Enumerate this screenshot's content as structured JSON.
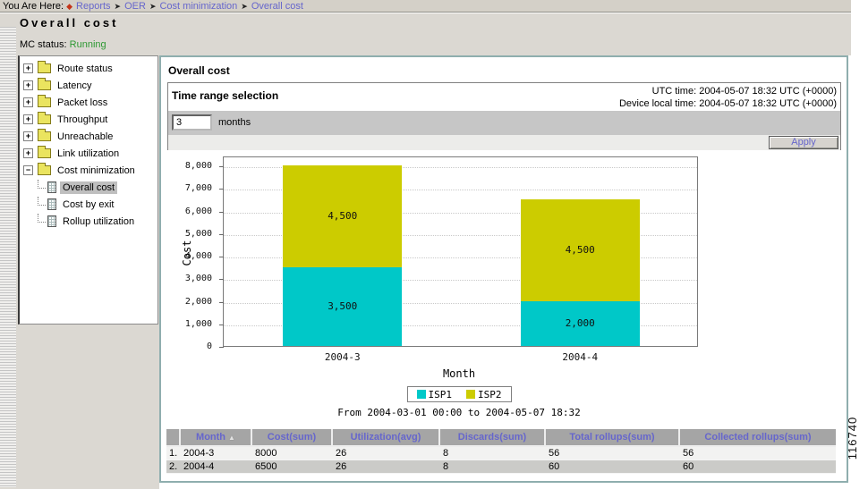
{
  "breadcrumb": {
    "prefix": "You Are Here:",
    "items": [
      "Reports",
      "OER",
      "Cost minimization",
      "Overall cost"
    ]
  },
  "page": {
    "title": "Overall cost",
    "mc_status_label": "MC status:",
    "mc_status_value": "Running",
    "figure_number": "116740"
  },
  "sidebar": {
    "items": [
      {
        "label": "Route status",
        "type": "folder",
        "state": "collapsed"
      },
      {
        "label": "Latency",
        "type": "folder",
        "state": "collapsed"
      },
      {
        "label": "Packet loss",
        "type": "folder",
        "state": "collapsed"
      },
      {
        "label": "Throughput",
        "type": "folder",
        "state": "collapsed"
      },
      {
        "label": "Unreachable",
        "type": "folder",
        "state": "collapsed"
      },
      {
        "label": "Link utilization",
        "type": "folder",
        "state": "collapsed"
      },
      {
        "label": "Cost minimization",
        "type": "folder",
        "state": "expanded",
        "children": [
          {
            "label": "Overall cost",
            "selected": true
          },
          {
            "label": "Cost by exit",
            "selected": false
          },
          {
            "label": "Rollup utilization",
            "selected": false
          }
        ]
      }
    ]
  },
  "main": {
    "section_title": "Overall cost",
    "time_range": {
      "title": "Time range selection",
      "utc_label": "UTC time:",
      "utc_value": "2004-05-07 18:32 UTC (+0000)",
      "device_label": "Device local time:",
      "device_value": "2004-05-07 18:32 UTC (+0000)",
      "input_value": "3",
      "input_unit": "months",
      "apply_label": "Apply"
    }
  },
  "chart_data": {
    "type": "bar",
    "stacked": true,
    "categories": [
      "2004-3",
      "2004-4"
    ],
    "series": [
      {
        "name": "ISP1",
        "color": "#00C8C8",
        "values": [
          3500,
          2000
        ]
      },
      {
        "name": "ISP2",
        "color": "#CCCC00",
        "values": [
          4500,
          4500
        ]
      }
    ],
    "xlabel": "Month",
    "ylabel": "Cost",
    "ylim": [
      0,
      8000
    ],
    "ytick_step": 1000,
    "grid": true,
    "legend_position": "bottom",
    "caption": "From 2004-03-01 00:00 to 2004-05-07 18:32"
  },
  "table": {
    "columns": [
      {
        "label": "Month",
        "sorted": "asc"
      },
      {
        "label": "Cost(sum)",
        "sorted": ""
      },
      {
        "label": "Utilization(avg)",
        "sorted": ""
      },
      {
        "label": "Discards(sum)",
        "sorted": ""
      },
      {
        "label": "Total rollups(sum)",
        "sorted": ""
      },
      {
        "label": "Collected rollups(sum)",
        "sorted": ""
      }
    ],
    "rows": [
      {
        "num": "1.",
        "cells": [
          "2004-3",
          "8000",
          "26",
          "8",
          "56",
          "56"
        ]
      },
      {
        "num": "2.",
        "cells": [
          "2004-4",
          "6500",
          "26",
          "8",
          "60",
          "60"
        ]
      }
    ]
  },
  "colors": {
    "link": "#6666CC",
    "status_running": "#2E9933",
    "table_header_bg": "#A5A5A5",
    "panel_border": "#8FAEAE"
  }
}
